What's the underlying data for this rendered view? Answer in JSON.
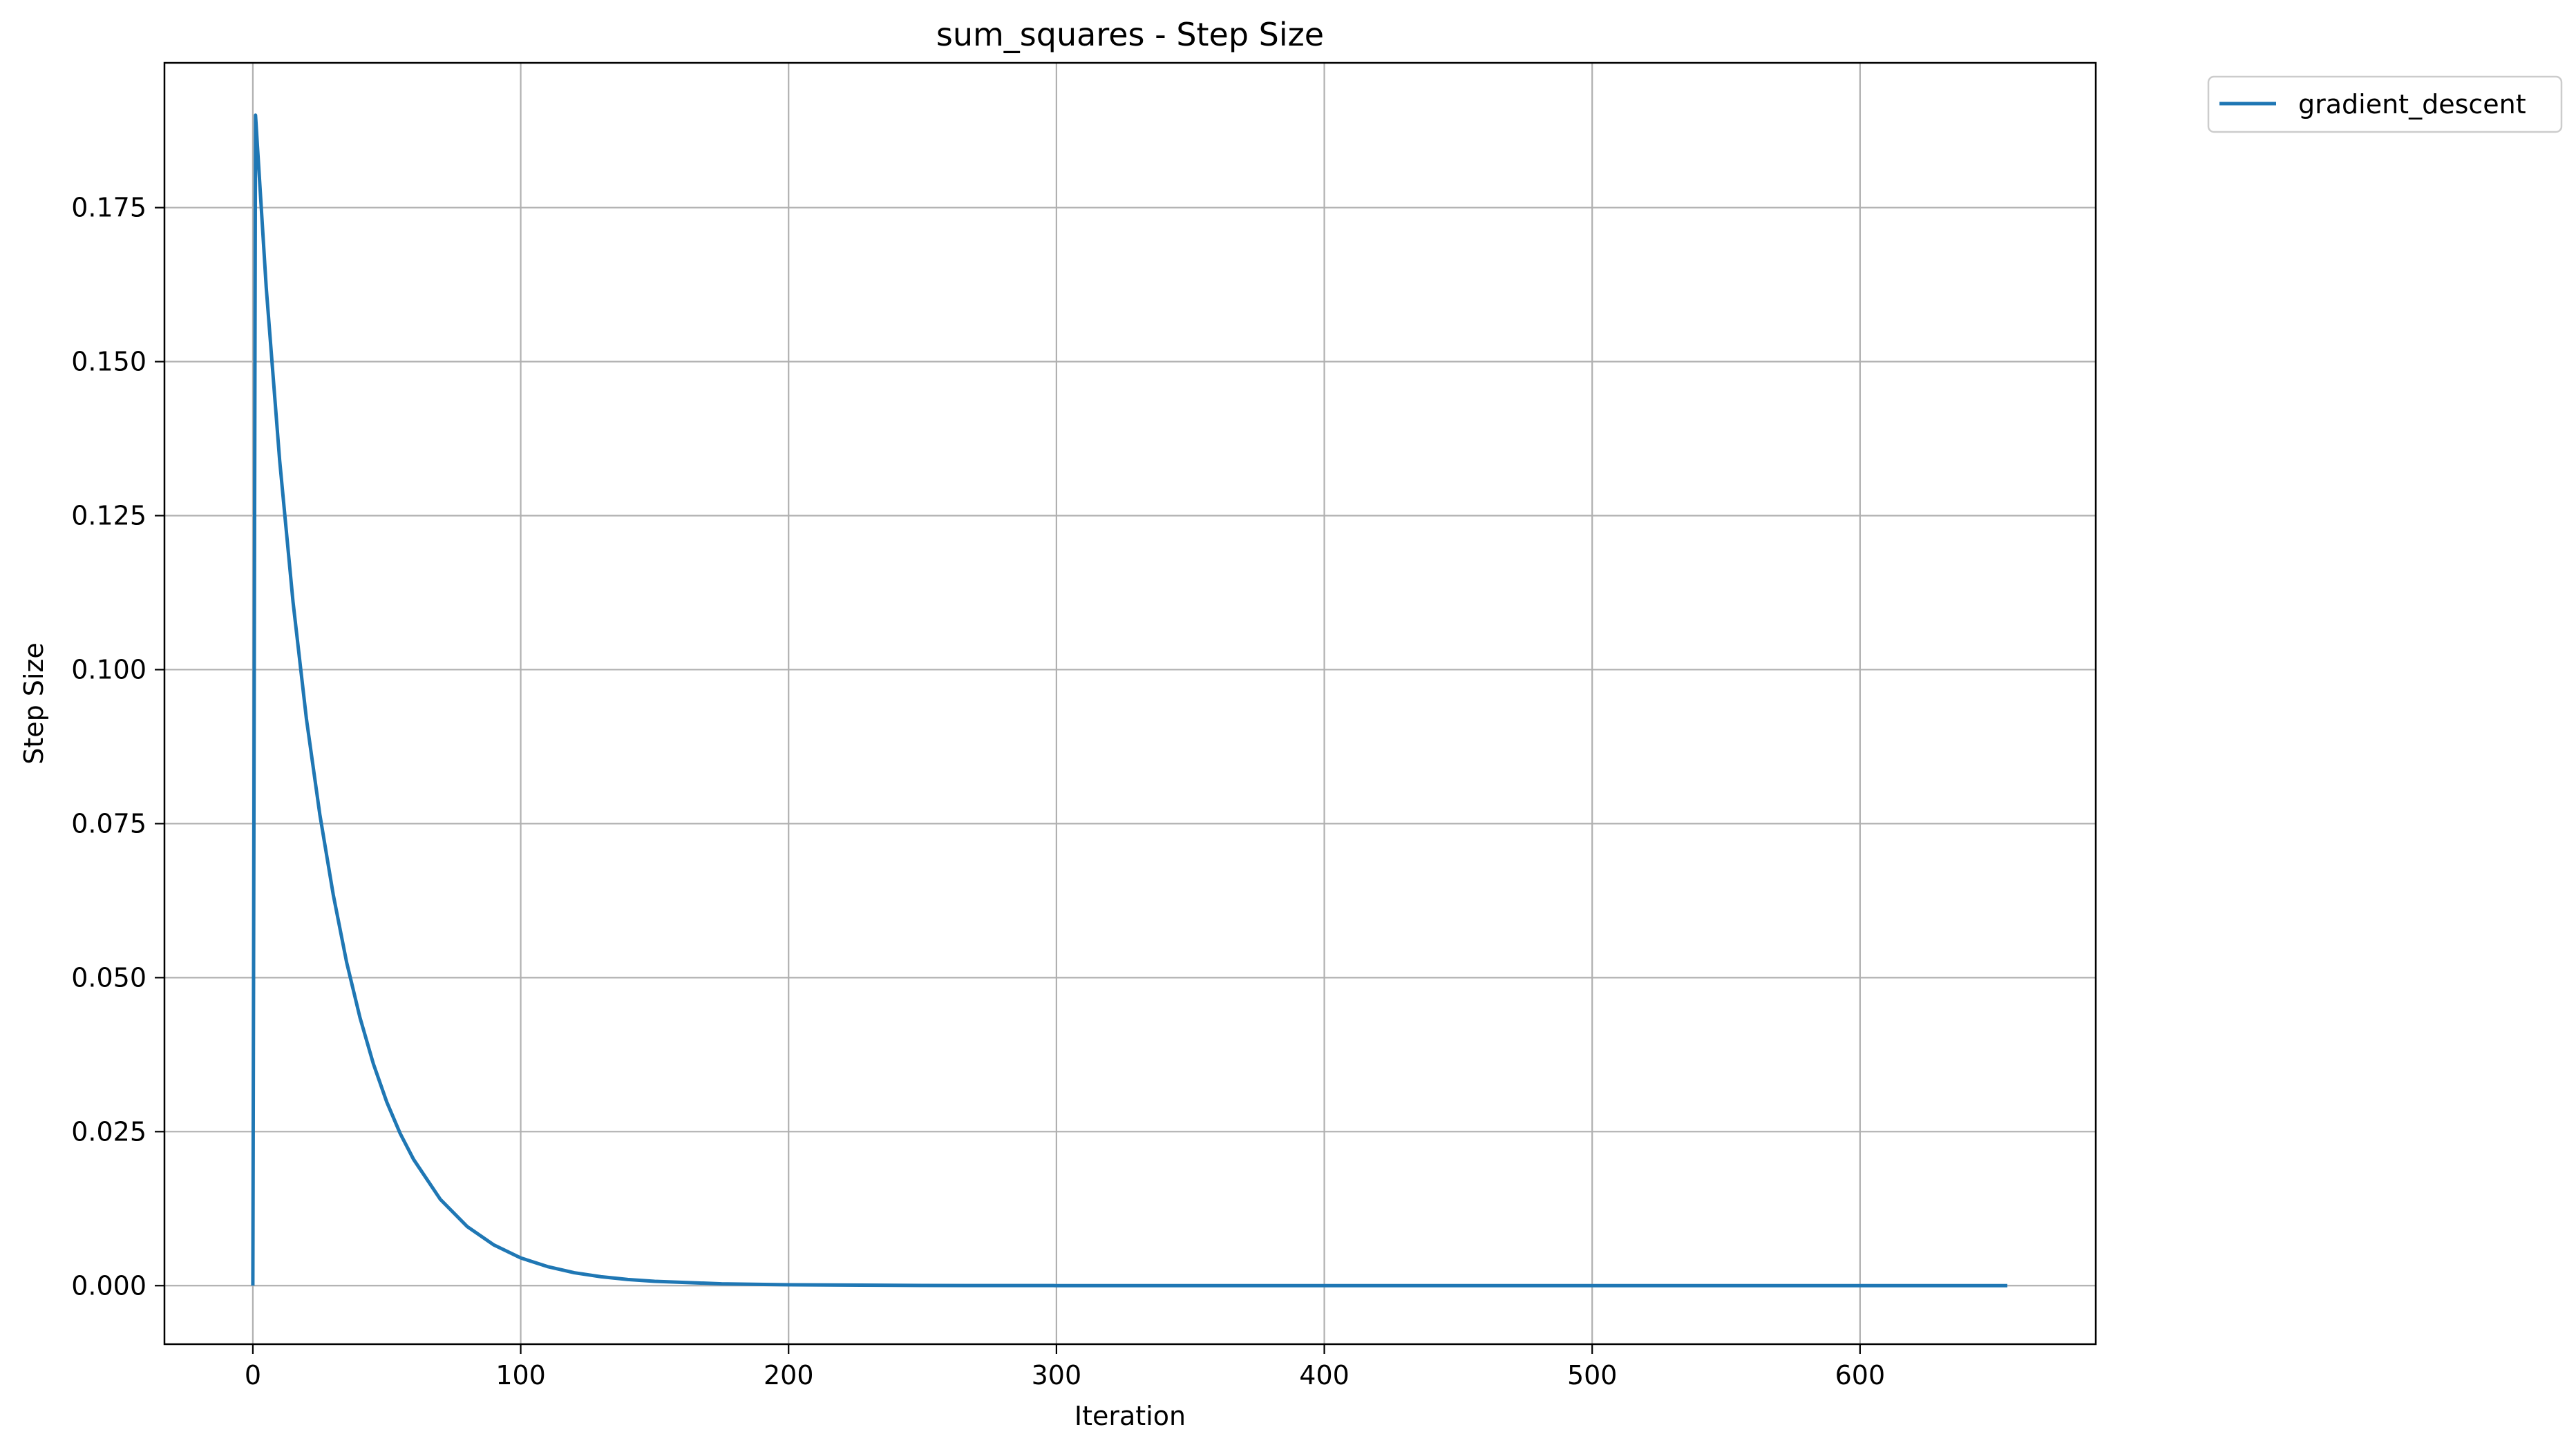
{
  "chart_data": {
    "type": "line",
    "title": "sum_squares - Step Size",
    "xlabel": "Iteration",
    "ylabel": "Step Size",
    "xlim": [
      -33,
      688
    ],
    "ylim": [
      -0.0095,
      0.1985
    ],
    "xticks": [
      0,
      100,
      200,
      300,
      400,
      500,
      600
    ],
    "xtick_labels": [
      "0",
      "100",
      "200",
      "300",
      "400",
      "500",
      "600"
    ],
    "yticks": [
      0.0,
      0.025,
      0.05,
      0.075,
      0.1,
      0.125,
      0.15,
      0.175
    ],
    "ytick_labels": [
      "0.000",
      "0.025",
      "0.050",
      "0.075",
      "0.100",
      "0.125",
      "0.150",
      "0.175"
    ],
    "grid": true,
    "legend_position": "outside-top-right",
    "series": [
      {
        "name": "gradient_descent",
        "color": "#1f77b4",
        "x": [
          0,
          1,
          5,
          10,
          15,
          20,
          25,
          30,
          35,
          40,
          45,
          50,
          55,
          60,
          70,
          80,
          90,
          100,
          110,
          120,
          130,
          140,
          150,
          175,
          200,
          250,
          300,
          350,
          400,
          450,
          500,
          550,
          600,
          655
        ],
        "y": [
          0.0,
          0.19,
          0.162,
          0.134,
          0.111,
          0.092,
          0.0765,
          0.0635,
          0.0525,
          0.0435,
          0.036,
          0.0298,
          0.0247,
          0.0205,
          0.014,
          0.0096,
          0.0066,
          0.0045,
          0.0031,
          0.0021,
          0.00145,
          0.001,
          0.0007,
          0.0003,
          0.00015,
          3e-05,
          1e-05,
          0.0,
          0.0,
          0.0,
          0.0,
          0.0,
          0.0,
          0.0
        ]
      }
    ]
  }
}
